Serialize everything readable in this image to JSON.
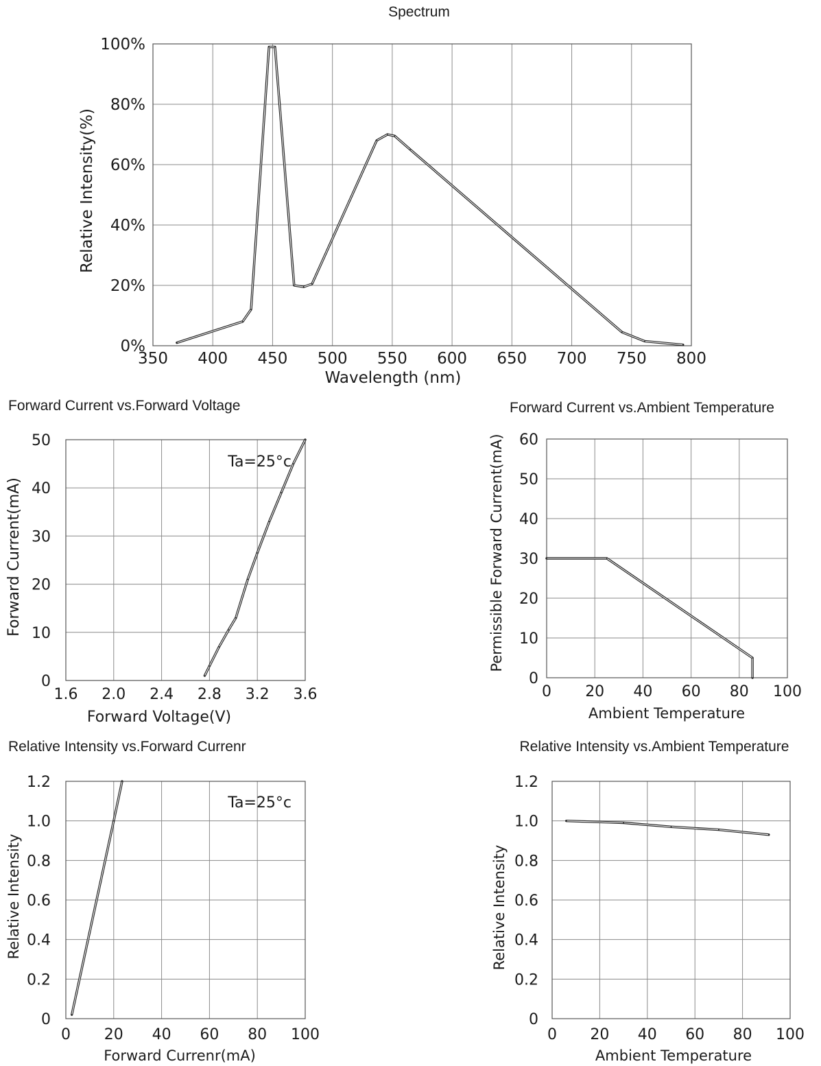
{
  "chart_data": [
    {
      "id": "spectrum",
      "type": "line",
      "title": "Spectrum",
      "xlabel": "Wavelength (nm)",
      "ylabel": "Relative Intensity(%)",
      "xlim": [
        350,
        800
      ],
      "ylim": [
        0,
        100
      ],
      "xticks": [
        "350",
        "400",
        "450",
        "500",
        "550",
        "600",
        "650",
        "700",
        "750",
        "800"
      ],
      "yticks": [
        "0%",
        "20%",
        "40%",
        "60%",
        "80%",
        "100%"
      ],
      "grid": true,
      "series": [
        {
          "x": [
            370,
            425,
            432,
            447,
            452,
            468,
            476,
            483,
            537,
            546,
            552,
            565,
            742,
            761,
            793
          ],
          "y": [
            1,
            8,
            12,
            99,
            99,
            20,
            19.5,
            20.5,
            68,
            70,
            69.5,
            65,
            4.5,
            1.5,
            0.3
          ]
        }
      ]
    },
    {
      "id": "if-vf",
      "type": "line",
      "title": "Forward Current vs.Forward Voltage",
      "xlabel": "Forward Voltage(V)",
      "ylabel": "Forward Current(mA)",
      "xlim": [
        1.6,
        3.6
      ],
      "ylim": [
        0,
        50
      ],
      "xticks": [
        "1.6",
        "2.0",
        "2.4",
        "2.8",
        "3.2",
        "3.6"
      ],
      "yticks": [
        "0",
        "10",
        "20",
        "30",
        "40",
        "50"
      ],
      "annotation": "Ta=25°c",
      "grid": true,
      "series": [
        {
          "x": [
            2.76,
            2.8,
            2.88,
            2.96,
            3.02,
            3.12,
            3.2,
            3.3,
            3.4,
            3.5,
            3.6
          ],
          "y": [
            1,
            3,
            7,
            10.5,
            13,
            21,
            26.5,
            33,
            39,
            45,
            50
          ]
        }
      ]
    },
    {
      "id": "if-ta",
      "type": "line",
      "title": "Forward Current vs.Ambient Temperature",
      "xlabel": "Ambient Temperature",
      "ylabel": "Permissible Forward Current(mA)",
      "xlim": [
        0,
        100
      ],
      "ylim": [
        0,
        60
      ],
      "xticks": [
        "0",
        "20",
        "40",
        "60",
        "80",
        "100"
      ],
      "yticks": [
        "0",
        "10",
        "20",
        "30",
        "40",
        "50",
        "60"
      ],
      "grid": true,
      "series": [
        {
          "x": [
            0,
            25,
            85.5,
            85.5
          ],
          "y": [
            30,
            30,
            5,
            0
          ]
        }
      ]
    },
    {
      "id": "iv-if",
      "type": "line",
      "title": "Relative Intensity vs.Forward Currenr",
      "xlabel": "Forward Currenr(mA)",
      "ylabel": "Relative Intensity",
      "xlim": [
        0,
        100
      ],
      "ylim": [
        0,
        1.2
      ],
      "xticks": [
        "0",
        "20",
        "40",
        "60",
        "80",
        "100"
      ],
      "yticks": [
        "0",
        "0.2",
        "0.4",
        "0.6",
        "0.8",
        "1.0",
        "1.2"
      ],
      "annotation": "Ta=25°c",
      "grid": true,
      "series": [
        {
          "x": [
            2.5,
            20,
            23.5
          ],
          "y": [
            0.02,
            1.0,
            1.2
          ]
        }
      ]
    },
    {
      "id": "iv-ta",
      "type": "line",
      "title": "Relative Intensity vs.Ambient Temperature",
      "xlabel": "Ambient Temperature",
      "ylabel": "Relative Intensity",
      "xlim": [
        0,
        100
      ],
      "ylim": [
        0,
        1.2
      ],
      "xticks": [
        "0",
        "20",
        "40",
        "60",
        "80",
        "100"
      ],
      "yticks": [
        "0",
        "0.2",
        "0.4",
        "0.6",
        "0.8",
        "1.0",
        "1.2"
      ],
      "grid": true,
      "series": [
        {
          "x": [
            6,
            30,
            50,
            70,
            91
          ],
          "y": [
            1.0,
            0.99,
            0.97,
            0.955,
            0.93
          ]
        }
      ]
    }
  ]
}
